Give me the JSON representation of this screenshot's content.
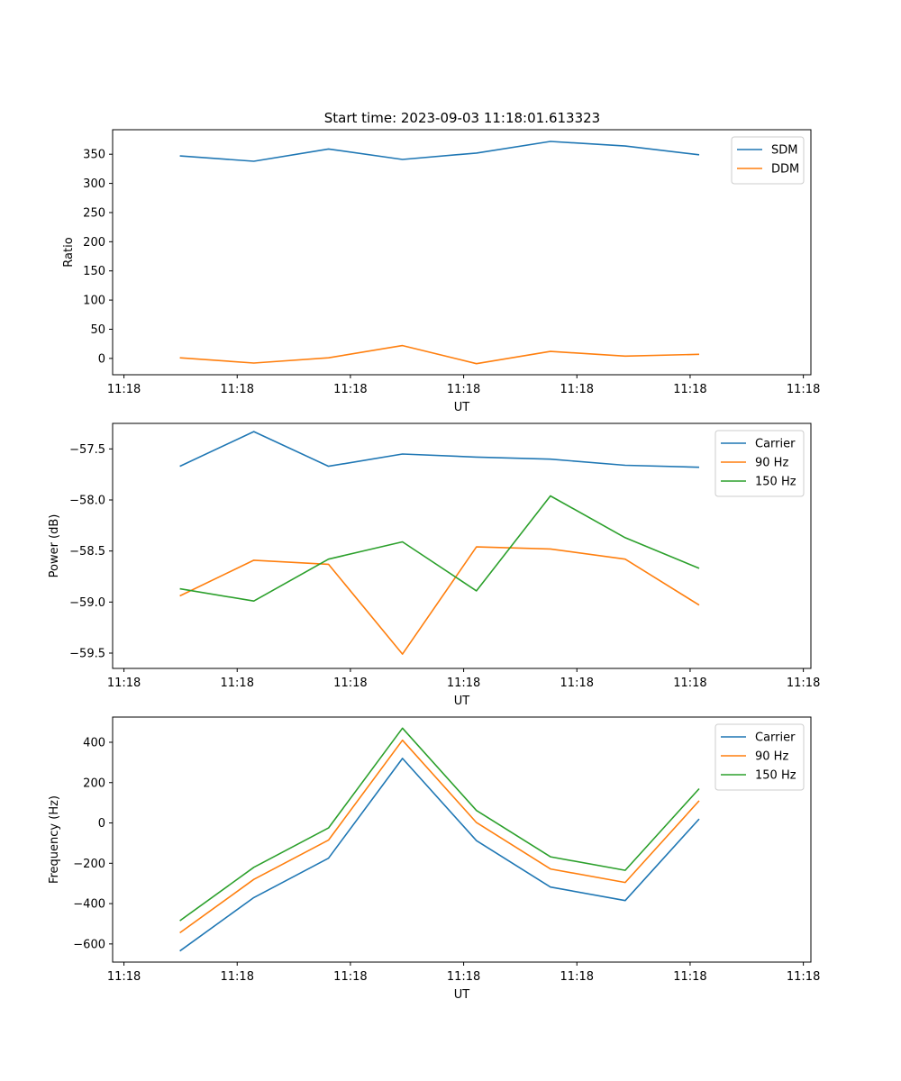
{
  "figure_title": "Start time: 2023-09-03 11:18:01.613323",
  "colors": {
    "blue": "#1f77b4",
    "orange": "#ff7f0e",
    "green": "#2ca02c"
  },
  "chart_data": [
    {
      "type": "line",
      "title": "Start time: 2023-09-03 11:18:01.613323",
      "xlabel": "UT",
      "ylabel": "Ratio",
      "x_ticks": [
        "11:18",
        "11:18",
        "11:18",
        "11:18",
        "11:18",
        "11:18",
        "11:18"
      ],
      "x_tick_positions": [
        0,
        1.5,
        3,
        4.5,
        6,
        7.5,
        9
      ],
      "xlim": [
        -0.15,
        9.1
      ],
      "ylim": [
        -28,
        392
      ],
      "y_ticks": [
        0,
        50,
        100,
        150,
        200,
        250,
        300,
        350
      ],
      "legend": "top-right",
      "series": [
        {
          "name": "SDM",
          "color": "#1f77b4",
          "x": [
            0.74,
            1.72,
            2.71,
            3.69,
            4.67,
            5.65,
            6.64,
            7.62
          ],
          "values": [
            347,
            338,
            359,
            341,
            352,
            372,
            364,
            349
          ]
        },
        {
          "name": "DDM",
          "color": "#ff7f0e",
          "x": [
            0.74,
            1.72,
            2.71,
            3.69,
            4.67,
            5.65,
            6.64,
            7.62
          ],
          "values": [
            1,
            -8,
            1,
            22,
            -9,
            12,
            4,
            7
          ]
        }
      ]
    },
    {
      "type": "line",
      "title": "",
      "xlabel": "UT",
      "ylabel": "Power (dB)",
      "x_ticks": [
        "11:18",
        "11:18",
        "11:18",
        "11:18",
        "11:18",
        "11:18",
        "11:18"
      ],
      "x_tick_positions": [
        0,
        1.5,
        3,
        4.5,
        6,
        7.5,
        9
      ],
      "xlim": [
        -0.15,
        9.1
      ],
      "ylim": [
        -59.65,
        -57.25
      ],
      "y_ticks": [
        -57.5,
        -58.0,
        -58.5,
        -59.0,
        -59.5
      ],
      "y_tick_labels": [
        "−57.5",
        "−58.0",
        "−58.5",
        "−59.0",
        "−59.5"
      ],
      "legend": "top-right",
      "series": [
        {
          "name": "Carrier",
          "color": "#1f77b4",
          "x": [
            0.74,
            1.72,
            2.71,
            3.69,
            4.67,
            5.65,
            6.64,
            7.62
          ],
          "values": [
            -57.67,
            -57.33,
            -57.67,
            -57.55,
            -57.58,
            -57.6,
            -57.66,
            -57.68
          ]
        },
        {
          "name": "90 Hz",
          "color": "#ff7f0e",
          "x": [
            0.74,
            1.72,
            2.71,
            3.69,
            4.67,
            5.65,
            6.64,
            7.62
          ],
          "values": [
            -58.94,
            -58.59,
            -58.63,
            -59.51,
            -58.46,
            -58.48,
            -58.58,
            -59.03
          ]
        },
        {
          "name": "150 Hz",
          "color": "#2ca02c",
          "x": [
            0.74,
            1.72,
            2.71,
            3.69,
            4.67,
            5.65,
            6.64,
            7.62
          ],
          "values": [
            -58.87,
            -58.99,
            -58.58,
            -58.41,
            -58.89,
            -57.96,
            -58.37,
            -58.67
          ]
        }
      ]
    },
    {
      "type": "line",
      "title": "",
      "xlabel": "UT",
      "ylabel": "Frequency (Hz)",
      "x_ticks": [
        "11:18",
        "11:18",
        "11:18",
        "11:18",
        "11:18",
        "11:18",
        "11:18"
      ],
      "x_tick_positions": [
        0,
        1.5,
        3,
        4.5,
        6,
        7.5,
        9
      ],
      "xlim": [
        -0.15,
        9.1
      ],
      "ylim": [
        -690,
        525
      ],
      "y_ticks": [
        400,
        200,
        0,
        -200,
        -400,
        -600
      ],
      "y_tick_labels": [
        "400",
        "200",
        "0",
        "−200",
        "−400",
        "−600"
      ],
      "legend": "top-right",
      "series": [
        {
          "name": "Carrier",
          "color": "#1f77b4",
          "x": [
            0.74,
            1.72,
            2.71,
            3.69,
            4.67,
            5.65,
            6.64,
            7.62
          ],
          "values": [
            -635,
            -370,
            -175,
            320,
            -88,
            -318,
            -385,
            20
          ]
        },
        {
          "name": "90 Hz",
          "color": "#ff7f0e",
          "x": [
            0.74,
            1.72,
            2.71,
            3.69,
            4.67,
            5.65,
            6.64,
            7.62
          ],
          "values": [
            -545,
            -280,
            -85,
            410,
            2,
            -228,
            -295,
            110
          ]
        },
        {
          "name": "150 Hz",
          "color": "#2ca02c",
          "x": [
            0.74,
            1.72,
            2.71,
            3.69,
            4.67,
            5.65,
            6.64,
            7.62
          ],
          "values": [
            -485,
            -220,
            -25,
            470,
            62,
            -168,
            -235,
            170
          ]
        }
      ]
    }
  ]
}
